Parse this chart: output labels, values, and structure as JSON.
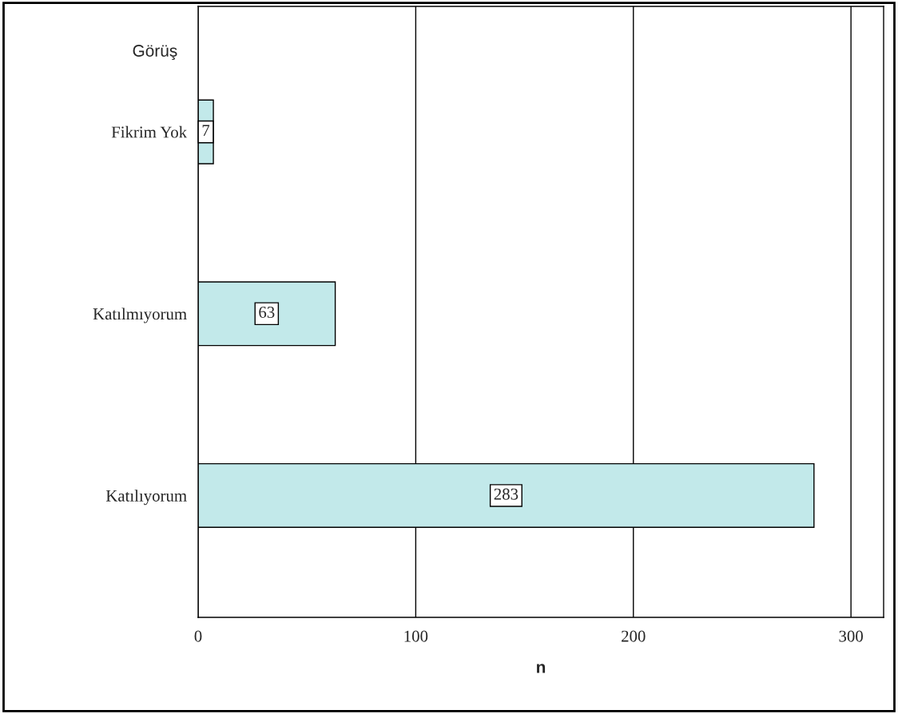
{
  "chart_data": {
    "type": "bar",
    "orientation": "horizontal",
    "ylabel": "Görüş",
    "xlabel": "n",
    "categories": [
      "Fikrim Yok",
      "Katılmıyorum",
      "Katılıyorum"
    ],
    "values": [
      7,
      63,
      283
    ],
    "color": "#c2e9ea",
    "xlim": [
      0,
      315
    ],
    "xticks": [
      0,
      100,
      200,
      300
    ],
    "grid": "x",
    "data_labels": true
  }
}
